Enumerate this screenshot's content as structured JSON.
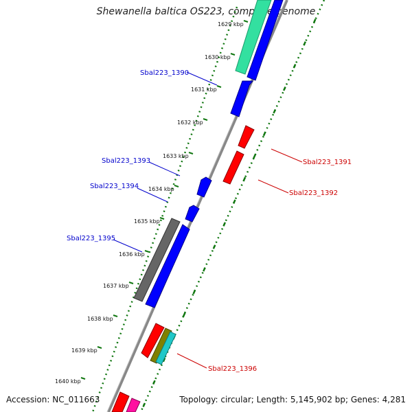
{
  "title": "Shewanella baltica OS223, complete genome",
  "footer": {
    "accession": "Accession: NC_011663",
    "summary": "Topology: circular; Length: 5,145,902 bp; Genes: 4,281"
  },
  "ticks": [
    "1629 kbp",
    "1630 kbp",
    "1631 kbp",
    "1632 kbp",
    "1633 kbp",
    "1634 kbp",
    "1635 kbp",
    "1636 kbp",
    "1637 kbp",
    "1638 kbp",
    "1639 kbp",
    "1640 kbp"
  ],
  "gene_labels": [
    {
      "name": "Sbal223_1390",
      "color": "#0000cc"
    },
    {
      "name": "Sbal223_1391",
      "color": "#cc0000"
    },
    {
      "name": "Sbal223_1392",
      "color": "#cc0000"
    },
    {
      "name": "Sbal223_1393",
      "color": "#0000cc"
    },
    {
      "name": "Sbal223_1394",
      "color": "#0000cc"
    },
    {
      "name": "Sbal223_1395",
      "color": "#0000cc"
    },
    {
      "name": "Sbal223_1396",
      "color": "#cc0000"
    }
  ],
  "colors": {
    "forward_gene": "#0000ff",
    "reverse_gene": "#ff0000",
    "rna": "#666666",
    "green_feature": "#33e0a0",
    "olive_feature": "#808000",
    "cyan_feature": "#20c8c8",
    "magenta_feature": "#ff10a0",
    "backbone": "#888888",
    "dotted_track": "#117711"
  }
}
